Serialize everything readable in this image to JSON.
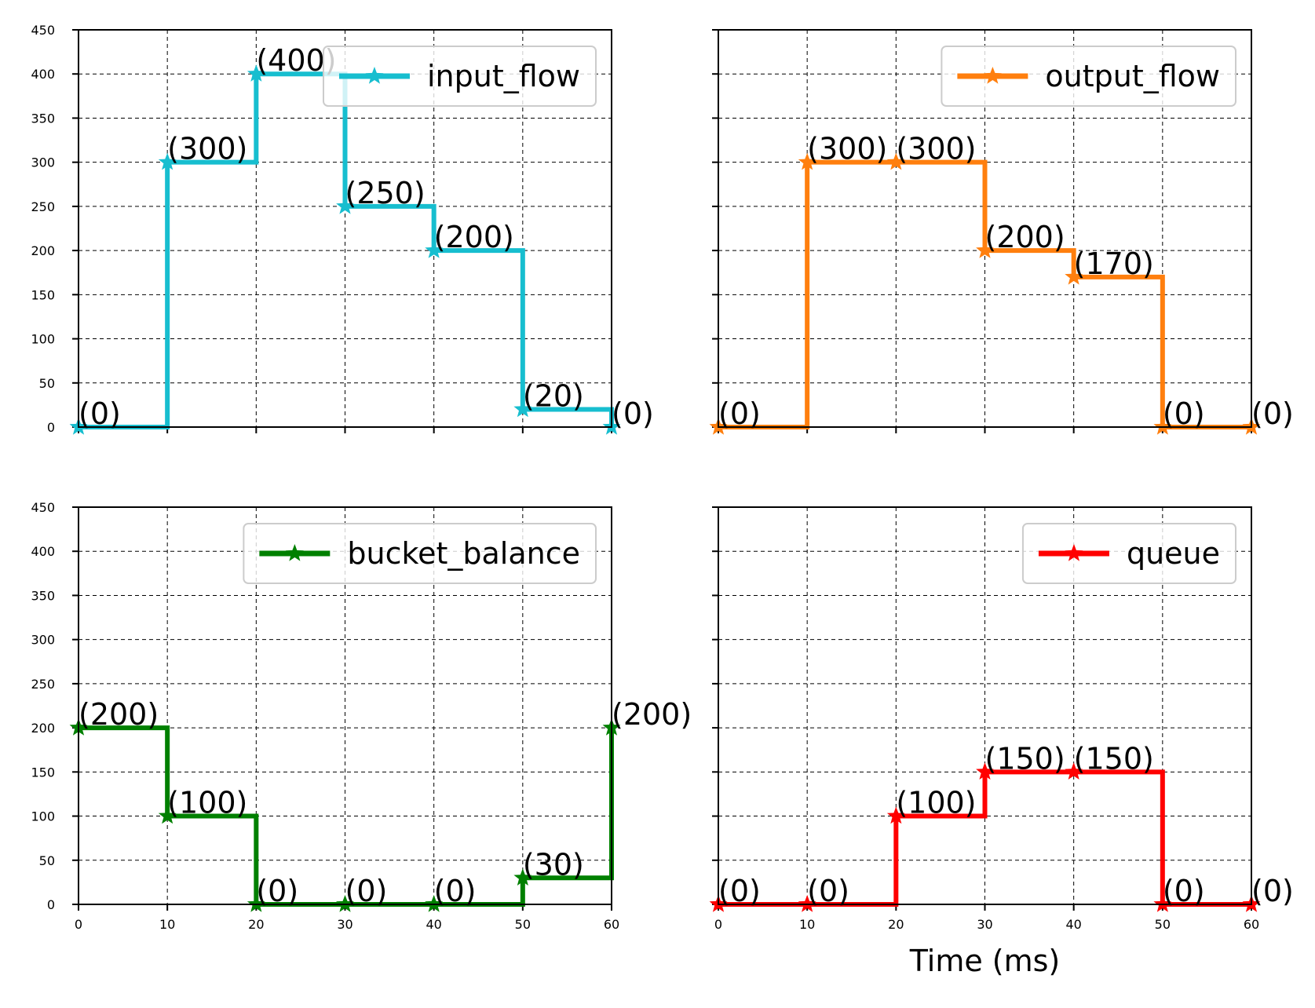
{
  "chart_data": [
    {
      "type": "line",
      "step": "post",
      "x": [
        0,
        10,
        20,
        30,
        40,
        50,
        60
      ],
      "series": [
        {
          "name": "input_flow",
          "color": "#17becf",
          "values": [
            0,
            300,
            400,
            250,
            200,
            20,
            0
          ]
        }
      ],
      "point_labels": [
        "(0)",
        "(300)",
        "(400)",
        "(250)",
        "(200)",
        "(20)",
        "(0)"
      ],
      "xlim": [
        0,
        60
      ],
      "ylim": [
        0,
        450
      ],
      "xticks": [
        "0",
        "10",
        "20",
        "30",
        "40",
        "50",
        "60"
      ],
      "yticks": [
        "0",
        "50",
        "100",
        "150",
        "200",
        "250",
        "300",
        "350",
        "400",
        "450"
      ],
      "show_xtick_labels": false,
      "show_ytick_labels": true,
      "xlabel": "",
      "ylabel": "",
      "grid": true,
      "legend": "top-right"
    },
    {
      "type": "line",
      "step": "post",
      "x": [
        0,
        10,
        20,
        30,
        40,
        50,
        60
      ],
      "series": [
        {
          "name": "output_flow",
          "color": "#ff7f0e",
          "values": [
            0,
            300,
            300,
            200,
            170,
            0,
            0
          ]
        }
      ],
      "point_labels": [
        "(0)",
        "(300)",
        "(300)",
        "(200)",
        "(170)",
        "(0)",
        "(0)"
      ],
      "xlim": [
        0,
        60
      ],
      "ylim": [
        0,
        450
      ],
      "xticks": [
        "0",
        "10",
        "20",
        "30",
        "40",
        "50",
        "60"
      ],
      "yticks": [
        "0",
        "50",
        "100",
        "150",
        "200",
        "250",
        "300",
        "350",
        "400",
        "450"
      ],
      "show_xtick_labels": false,
      "show_ytick_labels": false,
      "xlabel": "",
      "ylabel": "",
      "grid": true,
      "legend": "top-right"
    },
    {
      "type": "line",
      "step": "post",
      "x": [
        0,
        10,
        20,
        30,
        40,
        50,
        60
      ],
      "series": [
        {
          "name": "bucket_balance",
          "color": "#008000",
          "values": [
            200,
            100,
            0,
            0,
            0,
            30,
            200
          ]
        }
      ],
      "point_labels": [
        "(200)",
        "(100)",
        "(0)",
        "(0)",
        "(0)",
        "(30)",
        "(200)"
      ],
      "xlim": [
        0,
        60
      ],
      "ylim": [
        0,
        450
      ],
      "xticks": [
        "0",
        "10",
        "20",
        "30",
        "40",
        "50",
        "60"
      ],
      "yticks": [
        "0",
        "50",
        "100",
        "150",
        "200",
        "250",
        "300",
        "350",
        "400",
        "450"
      ],
      "show_xtick_labels": true,
      "show_ytick_labels": true,
      "xlabel": "",
      "ylabel": "",
      "grid": true,
      "legend": "top-right"
    },
    {
      "type": "line",
      "step": "post",
      "x": [
        0,
        10,
        20,
        30,
        40,
        50,
        60
      ],
      "series": [
        {
          "name": "queue",
          "color": "#ff0000",
          "values": [
            0,
            0,
            100,
            150,
            150,
            0,
            0
          ]
        }
      ],
      "point_labels": [
        "(0)",
        "(0)",
        "(100)",
        "(150)",
        "(150)",
        "(0)",
        "(0)"
      ],
      "xlim": [
        0,
        60
      ],
      "ylim": [
        0,
        450
      ],
      "xticks": [
        "0",
        "10",
        "20",
        "30",
        "40",
        "50",
        "60"
      ],
      "yticks": [
        "0",
        "50",
        "100",
        "150",
        "200",
        "250",
        "300",
        "350",
        "400",
        "450"
      ],
      "show_xtick_labels": true,
      "show_ytick_labels": false,
      "xlabel": "Time (ms)",
      "ylabel": "",
      "grid": true,
      "legend": "top-right"
    }
  ]
}
